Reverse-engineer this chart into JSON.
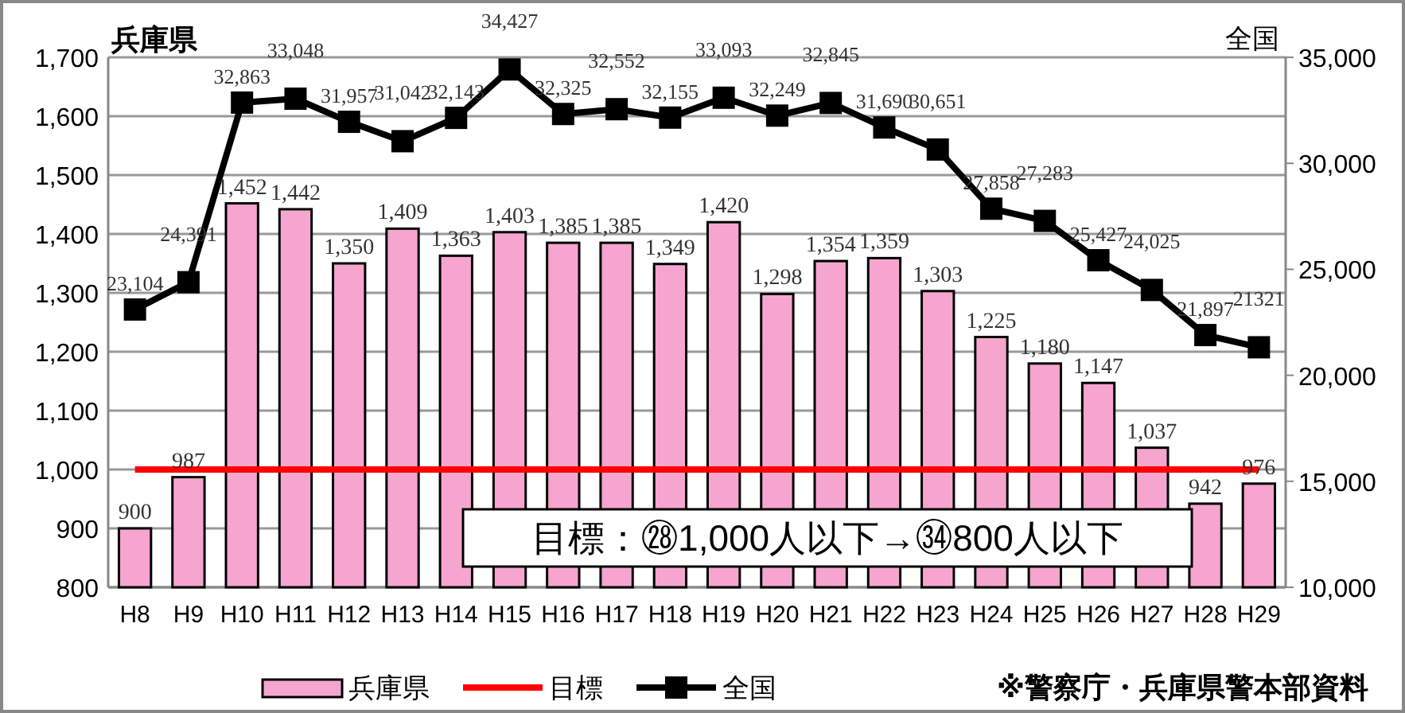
{
  "chart_data": {
    "type": "bar",
    "ylabel": "兵庫県",
    "y2label": "全国",
    "categories": [
      "H8",
      "H9",
      "H10",
      "H11",
      "H12",
      "H13",
      "H14",
      "H15",
      "H16",
      "H17",
      "H18",
      "H19",
      "H20",
      "H21",
      "H22",
      "H23",
      "H24",
      "H25",
      "H26",
      "H27",
      "H28",
      "H29"
    ],
    "series": [
      {
        "name": "兵庫県",
        "color": "#f6a5cf",
        "values": [
          900,
          987,
          1452,
          1442,
          1350,
          1409,
          1363,
          1403,
          1385,
          1385,
          1349,
          1420,
          1298,
          1354,
          1359,
          1303,
          1225,
          1180,
          1147,
          1037,
          942,
          976
        ],
        "value_labels": [
          "900",
          "987",
          "1,452",
          "1,442",
          "1,350",
          "1,409",
          "1,363",
          "1,403",
          "1,385",
          "1,385",
          "1,349",
          "1,420",
          "1,298",
          "1,354",
          "1,359",
          "1,303",
          "1,225",
          "1,180",
          "1,147",
          "1,037",
          "942",
          "976"
        ]
      },
      {
        "name": "全国",
        "type": "line",
        "axis": "y2",
        "color": "#000000",
        "marker": "square",
        "values": [
          23104,
          24391,
          32863,
          33048,
          31957,
          31042,
          32143,
          34427,
          32325,
          32552,
          32155,
          33093,
          32249,
          32845,
          31690,
          30651,
          27858,
          27283,
          25427,
          24025,
          21897,
          21321
        ],
        "value_labels": [
          "23,104",
          "24,391",
          "32,863",
          "33,048",
          "31,957",
          "31,042",
          "32,143",
          "34,427",
          "32,325",
          "32,552",
          "32,155",
          "33,093",
          "32,249",
          "32,845",
          "31,690",
          "30,651",
          "27,858",
          "27,283",
          "25,427",
          "24,025",
          "21,897",
          "21321"
        ]
      }
    ],
    "ylim": [
      800,
      1700
    ],
    "yticks": [
      {
        "value": 800,
        "label": "800"
      },
      {
        "value": 900,
        "label": "900"
      },
      {
        "value": 1000,
        "label": "1,000"
      },
      {
        "value": 1100,
        "label": "1,100"
      },
      {
        "value": 1200,
        "label": "1,200"
      },
      {
        "value": 1300,
        "label": "1,300"
      },
      {
        "value": 1400,
        "label": "1,400"
      },
      {
        "value": 1500,
        "label": "1,500"
      },
      {
        "value": 1600,
        "label": "1,600"
      },
      {
        "value": 1700,
        "label": "1,700"
      }
    ],
    "y2lim": [
      10000,
      35000
    ],
    "y2ticks": [
      {
        "value": 10000,
        "label": "10,000"
      },
      {
        "value": 15000,
        "label": "15,000"
      },
      {
        "value": 20000,
        "label": "20,000"
      },
      {
        "value": 25000,
        "label": "25,000"
      },
      {
        "value": 30000,
        "label": "30,000"
      },
      {
        "value": 35000,
        "label": "35,000"
      }
    ],
    "ref_lines": [
      {
        "axis": "y",
        "value": 1000,
        "label": "目標",
        "color": "#ff0000"
      }
    ],
    "annotations": [
      "目標：㉘1,000人以下→㉞800人以下",
      "※警察庁・兵庫県警本部資料"
    ],
    "grid": "y",
    "legend": "bottom"
  }
}
